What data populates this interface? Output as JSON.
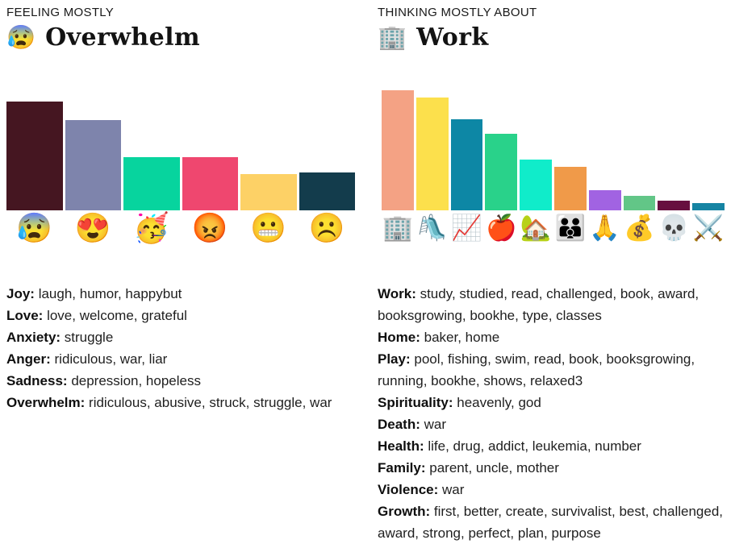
{
  "panels": [
    {
      "eyebrow": "FEELING MOSTLY",
      "title": "Overwhelm",
      "title_emoji": "😰",
      "title_emoji_name": "anxious-face-with-sweat",
      "words": [
        {
          "label": "Joy:",
          "text": "laugh, humor, happybut"
        },
        {
          "label": "Love:",
          "text": "love, welcome, grateful"
        },
        {
          "label": "Anxiety:",
          "text": "struggle"
        },
        {
          "label": "Anger:",
          "text": "ridiculous, war, liar"
        },
        {
          "label": "Sadness:",
          "text": "depression, hopeless"
        },
        {
          "label": "Overwhelm:",
          "text": "ridiculous, abusive, struck, struggle, war"
        }
      ]
    },
    {
      "eyebrow": "THINKING MOSTLY ABOUT",
      "title": "Work",
      "title_emoji": "🏢",
      "title_emoji_name": "office-building",
      "words": [
        {
          "label": "Work:",
          "text": "study, studied, read, challenged, book, award, booksgrowing, bookhe, type, classes"
        },
        {
          "label": "Home:",
          "text": "baker, home"
        },
        {
          "label": "Play:",
          "text": "pool, fishing, swim, read, book, booksgrowing, running, bookhe, shows, relaxed3"
        },
        {
          "label": "Spirituality:",
          "text": "heavenly, god"
        },
        {
          "label": "Death:",
          "text": "war"
        },
        {
          "label": "Health:",
          "text": "life, drug, addict, leukemia, number"
        },
        {
          "label": "Family:",
          "text": "parent, uncle, mother"
        },
        {
          "label": "Violence:",
          "text": "war"
        },
        {
          "label": "Growth:",
          "text": "first, better, create, survivalist, best, challenged, award, strong, perfect, plan, purpose"
        }
      ]
    }
  ],
  "chart_data": [
    {
      "type": "bar",
      "title": "Feeling mostly",
      "orientation": "vertical",
      "axes_hidden": true,
      "grid": false,
      "legend": "none",
      "xlabel": "",
      "ylabel": "",
      "ylim": [
        0,
        1
      ],
      "categories": [
        "overwhelm",
        "love",
        "joy",
        "anger",
        "anxiety",
        "sadness"
      ],
      "tick_emojis": [
        "😰",
        "😍",
        "🥳",
        "😡",
        "😬",
        "☹️"
      ],
      "tick_emoji_names": [
        "anxious-face-with-sweat",
        "smiling-face-with-heart-eyes",
        "partying-face",
        "enraged-face",
        "grimacing-face",
        "frowning-face"
      ],
      "values": [
        1.0,
        0.83,
        0.49,
        0.49,
        0.33,
        0.35
      ],
      "bar_colors": [
        "#451621",
        "#7e84ac",
        "#07d49e",
        "#ef476f",
        "#fdd166",
        "#133c4c"
      ]
    },
    {
      "type": "bar",
      "title": "Thinking mostly about",
      "orientation": "vertical",
      "axes_hidden": true,
      "grid": false,
      "legend": "none",
      "xlabel": "",
      "ylabel": "",
      "ylim": [
        0,
        1
      ],
      "categories": [
        "work",
        "play",
        "growth",
        "health",
        "home",
        "family",
        "spirituality",
        "money",
        "death",
        "violence"
      ],
      "tick_emojis": [
        "🏢",
        "🛝",
        "📈",
        "🍎",
        "🏡",
        "👪",
        "🙏",
        "💰",
        "💀",
        "⚔️"
      ],
      "tick_emoji_names": [
        "office-building",
        "playground-slide",
        "chart-increasing",
        "red-apple",
        "house-with-garden",
        "family",
        "folded-hands",
        "money-bag",
        "skull",
        "crossed-swords"
      ],
      "values": [
        1.0,
        0.94,
        0.76,
        0.64,
        0.42,
        0.36,
        0.17,
        0.12,
        0.08,
        0.06
      ],
      "bar_colors": [
        "#f4a284",
        "#fce04c",
        "#0d87a5",
        "#29d28a",
        "#10ecca",
        "#f09a49",
        "#a163e2",
        "#62c687",
        "#670f3f",
        "#1684a3"
      ]
    }
  ]
}
